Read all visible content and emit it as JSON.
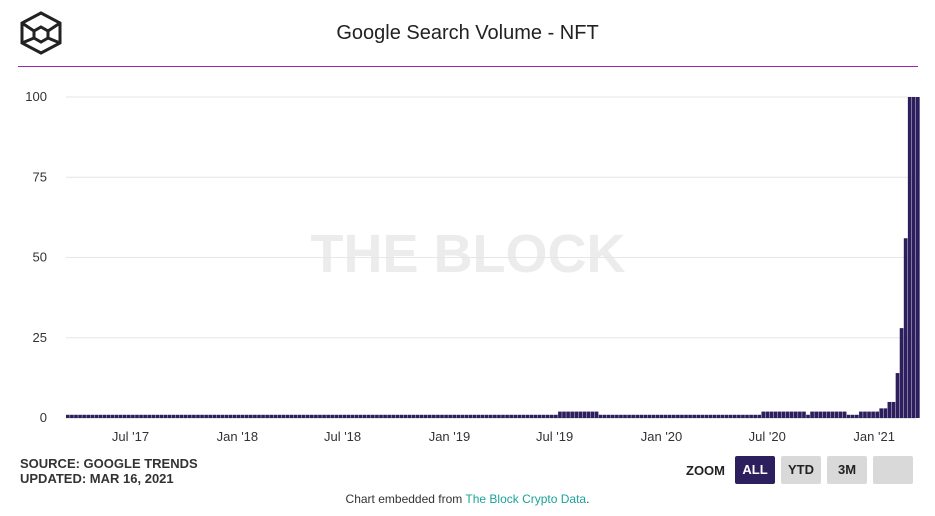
{
  "header": {
    "title": "Google Search Volume - NFT"
  },
  "chart_data": {
    "type": "bar",
    "title": "Google Search Volume - NFT",
    "watermark": "THE BLOCK",
    "y_ticks": [
      "100",
      "75",
      "50",
      "25",
      "0"
    ],
    "ylim": [
      0,
      100
    ],
    "x_ticks": [
      "Jul '17",
      "Jan '18",
      "Jul '18",
      "Jan '19",
      "Jul '19",
      "Jan '20",
      "Jul '20",
      "Jan '21"
    ],
    "x_range": [
      "2017-03-12",
      "2021-03-14"
    ],
    "series": [
      {
        "name": "NFT",
        "color": "#2d1f5e",
        "x": [
          "2017-03-19",
          "2017-06-18",
          "2017-09-17",
          "2017-12-17",
          "2018-03-18",
          "2018-06-17",
          "2018-09-16",
          "2018-12-16",
          "2019-03-17",
          "2019-06-16",
          "2019-07-07",
          "2019-09-15",
          "2019-12-15",
          "2020-03-15",
          "2020-06-14",
          "2020-06-21",
          "2020-09-06",
          "2020-09-13",
          "2020-10-04",
          "2020-11-15",
          "2020-12-06",
          "2020-12-20",
          "2020-12-27",
          "2021-01-03",
          "2021-01-10",
          "2021-01-17",
          "2021-01-24",
          "2021-01-31",
          "2021-02-07",
          "2021-02-14",
          "2021-02-21",
          "2021-02-28",
          "2021-03-07",
          "2021-03-14"
        ],
        "values": [
          1,
          1,
          1,
          1,
          1,
          1,
          1,
          1,
          1,
          1,
          2,
          1,
          1,
          1,
          1,
          2,
          1,
          2,
          2,
          1,
          2,
          2,
          2,
          2,
          3,
          3,
          5,
          5,
          14,
          28,
          56,
          100,
          100,
          100
        ]
      }
    ]
  },
  "footer_info": {
    "source": "SOURCE: GOOGLE TRENDS",
    "updated": "UPDATED: MAR 16, 2021",
    "embed_prefix": "Chart embedded from ",
    "embed_link": "The Block Crypto Data",
    "embed_suffix": "."
  },
  "zoom": {
    "label": "ZOOM",
    "buttons": [
      {
        "label": "ALL",
        "active": true
      },
      {
        "label": "YTD",
        "active": false
      },
      {
        "label": "3M",
        "active": false
      },
      {
        "label": "",
        "active": false
      }
    ]
  },
  "colors": {
    "accent": "#9c27b0",
    "bar": "#2d1f5e",
    "link": "#1aa39a"
  }
}
